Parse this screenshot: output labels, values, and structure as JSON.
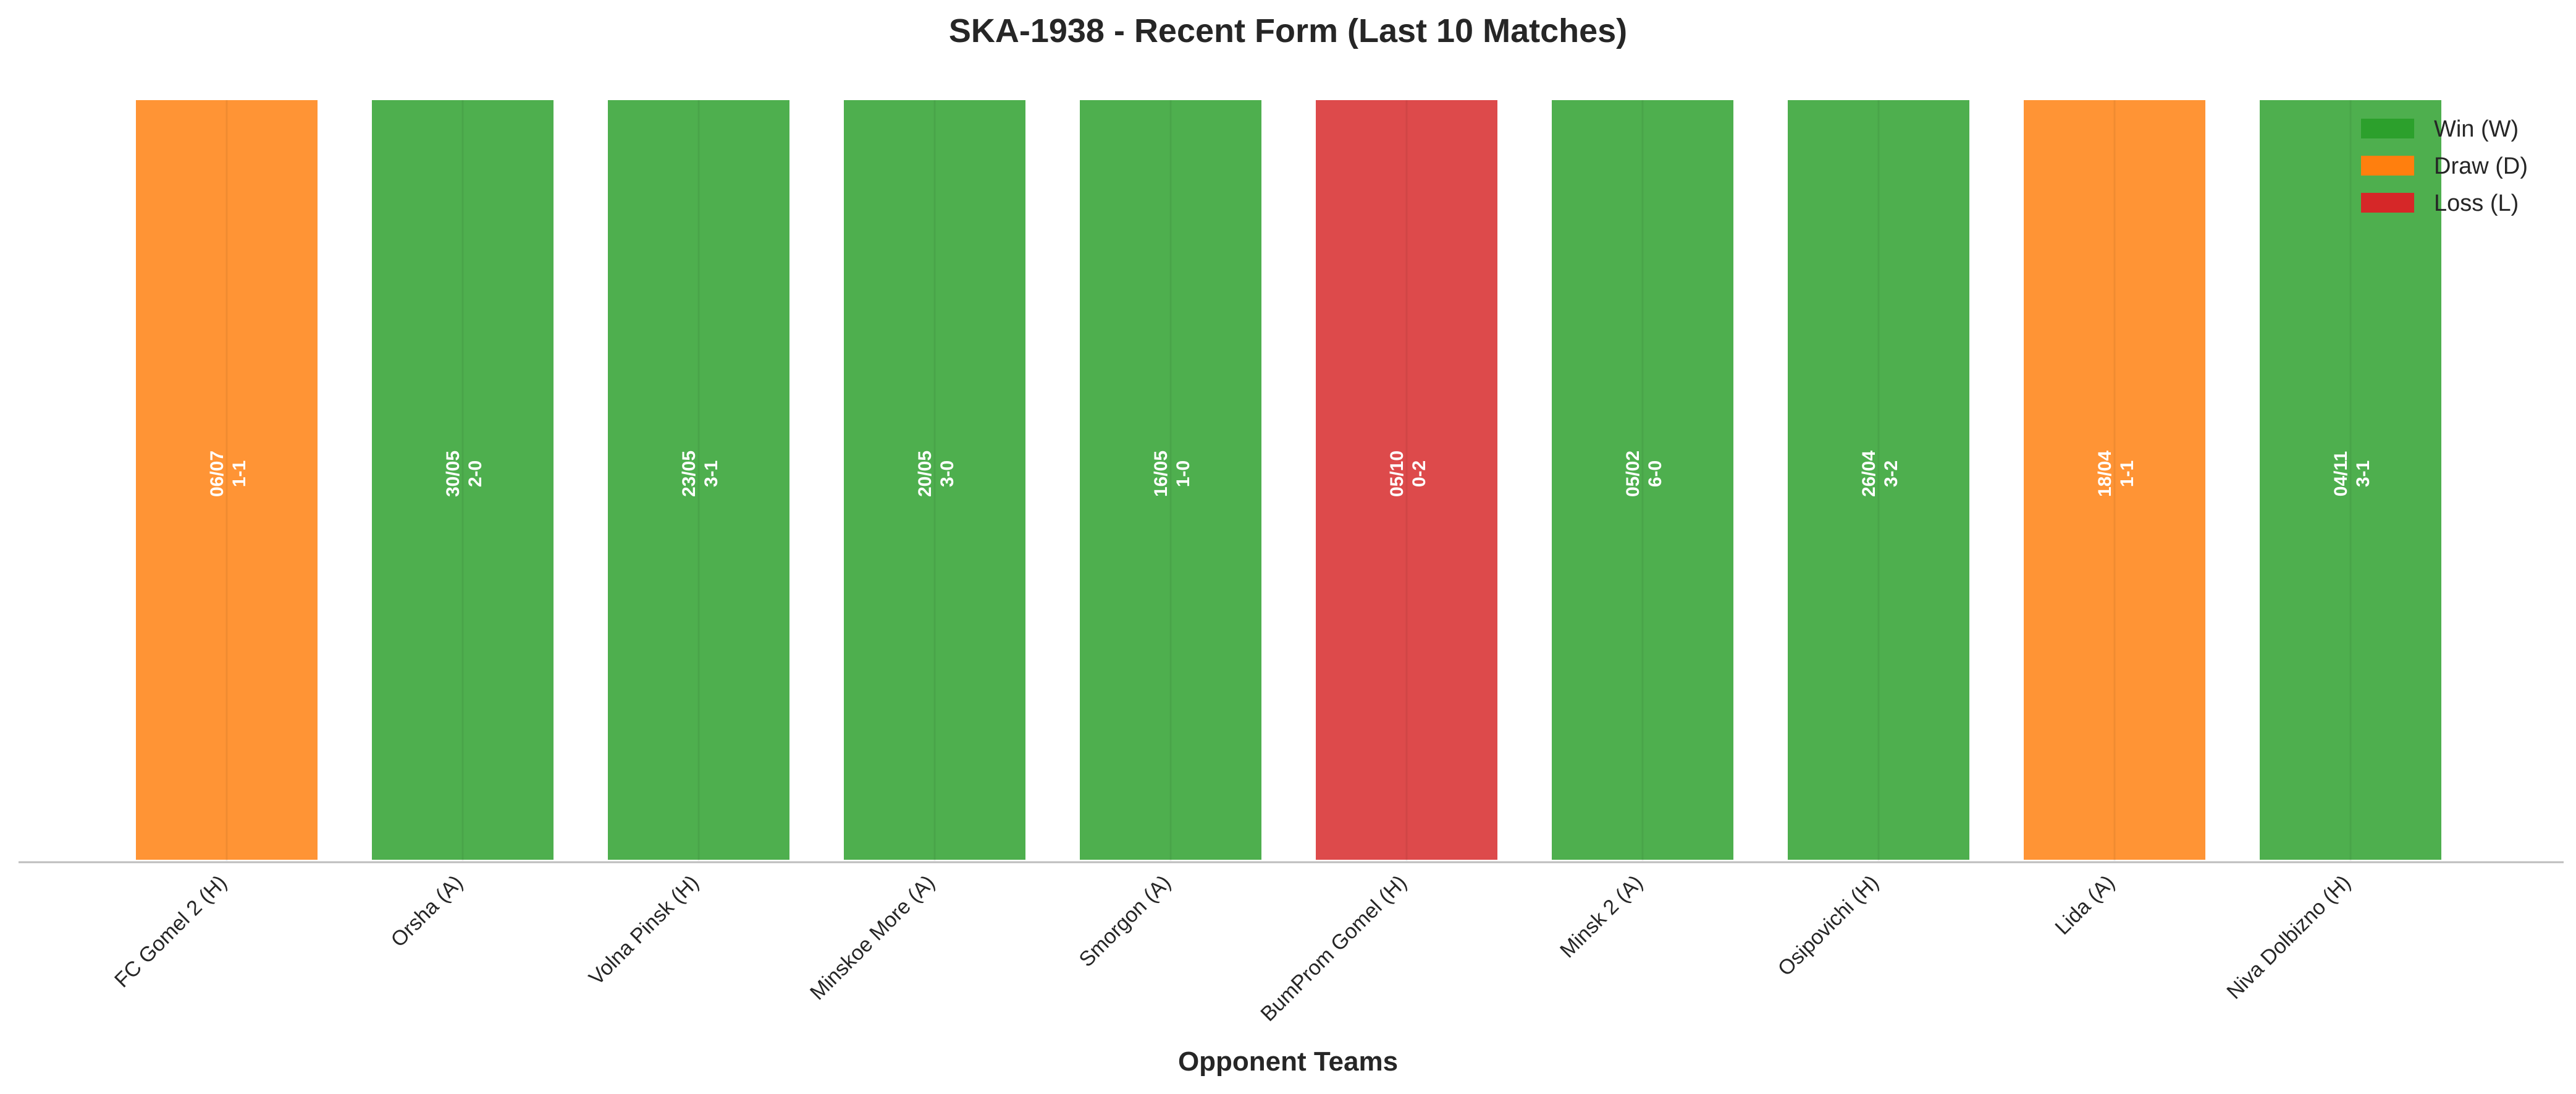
{
  "chart_data": {
    "type": "bar",
    "title": "SKA-1938 - Recent Form (Last 10 Matches)",
    "xlabel": "Opponent Teams",
    "ylabel": "",
    "ylim": [
      0,
      1
    ],
    "grid": false,
    "legend_position": "top-right",
    "categories": [
      "FC Gomel 2 (H)",
      "Orsha (A)",
      "Volna Pinsk (H)",
      "Minskoe More (A)",
      "Smorgon (A)",
      "BumProm Gomel (H)",
      "Minsk 2 (A)",
      "Osipovichi (H)",
      "Lida (A)",
      "Niva Dolbizno (H)"
    ],
    "values": [
      1,
      1,
      1,
      1,
      1,
      1,
      1,
      1,
      1,
      1
    ],
    "results": [
      "D",
      "W",
      "W",
      "W",
      "W",
      "L",
      "W",
      "W",
      "D",
      "W"
    ],
    "dates": [
      "06/07",
      "30/05",
      "23/05",
      "20/05",
      "16/05",
      "05/10",
      "05/02",
      "26/04",
      "18/04",
      "04/11"
    ],
    "scores": [
      "1-1",
      "2-0",
      "3-1",
      "3-0",
      "1-0",
      "0-2",
      "6-0",
      "3-2",
      "1-1",
      "3-1"
    ],
    "legend": [
      {
        "key": "W",
        "label": "Win (W)",
        "color": "#2ca02c"
      },
      {
        "key": "D",
        "label": "Draw (D)",
        "color": "#ff7f0e"
      },
      {
        "key": "L",
        "label": "Loss (L)",
        "color": "#d62728"
      }
    ]
  }
}
